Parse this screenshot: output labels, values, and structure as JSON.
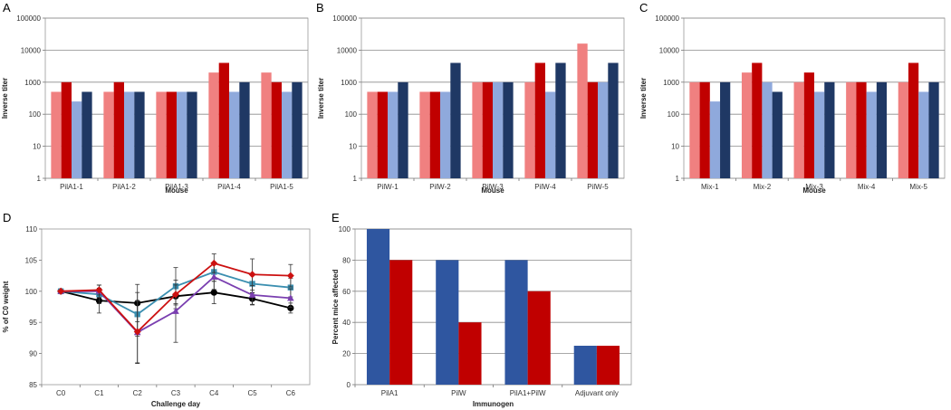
{
  "colors": {
    "light_red": "#f08080",
    "dark_red": "#c00000",
    "light_blue": "#8fa9dc",
    "dark_navy": "#1f3864",
    "bar_blue": "#2f56a0",
    "bar_red": "#c00000",
    "line_red": "#cc1010",
    "line_teal": "#3b8fb0",
    "line_purple": "#7a3fb0",
    "line_black": "#000000"
  },
  "chart_data": [
    {
      "panel": "A",
      "type": "bar",
      "scale": "log",
      "ylim": [
        1,
        100000
      ],
      "yticks": [
        "1",
        "10",
        "100",
        "1000",
        "10000",
        "100000"
      ],
      "ylabel": "Inverse titer",
      "xlabel": "Mouse",
      "categories": [
        "PilA1-1",
        "PilA1-2",
        "PilA1-3",
        "PilA1-4",
        "PilA1-5"
      ],
      "series": [
        {
          "name": "s1",
          "color": "#f08080",
          "values": [
            500,
            500,
            500,
            2000,
            2000
          ]
        },
        {
          "name": "s2",
          "color": "#c00000",
          "values": [
            1000,
            1000,
            500,
            4000,
            1000
          ]
        },
        {
          "name": "s3",
          "color": "#8fa9dc",
          "values": [
            250,
            500,
            500,
            500,
            500
          ]
        },
        {
          "name": "s4",
          "color": "#1f3864",
          "values": [
            500,
            500,
            500,
            1000,
            1000
          ]
        }
      ]
    },
    {
      "panel": "B",
      "type": "bar",
      "scale": "log",
      "ylim": [
        1,
        100000
      ],
      "yticks": [
        "1",
        "10",
        "100",
        "1000",
        "10000",
        "100000"
      ],
      "ylabel": "Inverse titer",
      "xlabel": "Mouse",
      "categories": [
        "PilW-1",
        "PilW-2",
        "PilW-3",
        "PilW-4",
        "PilW-5"
      ],
      "series": [
        {
          "name": "s1",
          "color": "#f08080",
          "values": [
            500,
            500,
            1000,
            1000,
            16000
          ]
        },
        {
          "name": "s2",
          "color": "#c00000",
          "values": [
            500,
            500,
            1000,
            4000,
            1000
          ]
        },
        {
          "name": "s3",
          "color": "#8fa9dc",
          "values": [
            500,
            500,
            1000,
            500,
            1000
          ]
        },
        {
          "name": "s4",
          "color": "#1f3864",
          "values": [
            1000,
            4000,
            1000,
            4000,
            4000
          ]
        }
      ]
    },
    {
      "panel": "C",
      "type": "bar",
      "scale": "log",
      "ylim": [
        1,
        100000
      ],
      "yticks": [
        "1",
        "10",
        "100",
        "1000",
        "10000",
        "100000"
      ],
      "ylabel": "Inverse titer",
      "xlabel": "Mouse",
      "categories": [
        "Mix-1",
        "Mix-2",
        "Mix-3",
        "Mix-4",
        "Mix-5"
      ],
      "series": [
        {
          "name": "s1",
          "color": "#f08080",
          "values": [
            1000,
            2000,
            1000,
            1000,
            1000
          ]
        },
        {
          "name": "s2",
          "color": "#c00000",
          "values": [
            1000,
            4000,
            2000,
            1000,
            4000
          ]
        },
        {
          "name": "s3",
          "color": "#8fa9dc",
          "values": [
            250,
            1000,
            500,
            500,
            500
          ]
        },
        {
          "name": "s4",
          "color": "#1f3864",
          "values": [
            1000,
            500,
            1000,
            1000,
            1000
          ]
        }
      ]
    },
    {
      "panel": "D",
      "type": "line",
      "ylim": [
        85,
        110
      ],
      "yticks": [
        "85",
        "90",
        "95",
        "100",
        "105",
        "110"
      ],
      "ylabel": "% of C0 weight",
      "xlabel": "Challenge day",
      "categories": [
        "C0",
        "C1",
        "C2",
        "C3",
        "C4",
        "C5",
        "C6"
      ],
      "series": [
        {
          "name": "red",
          "color": "#cc1010",
          "marker": "diamond",
          "values": [
            100,
            100.2,
            93.5,
            99.5,
            104.5,
            102.7,
            102.5
          ],
          "errors": [
            0,
            0.8,
            5.0,
            1.5,
            1.5,
            2.5,
            1.8
          ]
        },
        {
          "name": "teal",
          "color": "#3b8fb0",
          "marker": "square",
          "values": [
            100,
            99.5,
            96.3,
            100.8,
            103.1,
            101.2,
            100.6
          ],
          "errors": [
            0,
            1.5,
            3.5,
            3.0,
            1.5,
            1.5,
            1.5
          ]
        },
        {
          "name": "purple",
          "color": "#7a3fb0",
          "marker": "triangle",
          "values": [
            100,
            100,
            93.4,
            96.8,
            102.3,
            99.4,
            98.9
          ],
          "errors": [
            0,
            1.0,
            5.0,
            5.0,
            2.0,
            1.5,
            1.5
          ]
        },
        {
          "name": "black",
          "color": "#000000",
          "marker": "circle",
          "values": [
            100,
            98.5,
            98.1,
            99.2,
            99.8,
            98.8,
            97.3
          ],
          "errors": [
            0,
            2.0,
            3.0,
            2.0,
            1.8,
            1.0,
            0.8
          ]
        }
      ]
    },
    {
      "panel": "E",
      "type": "bar",
      "ylim": [
        0,
        100
      ],
      "yticks": [
        "0",
        "20",
        "40",
        "60",
        "80",
        "100"
      ],
      "ylabel": "Percent mice affected",
      "xlabel": "Immunogen",
      "categories": [
        "PilA1",
        "PilW",
        "PilA1+PilW",
        "Adjuvant only"
      ],
      "series": [
        {
          "name": "s1",
          "color": "#2f56a0",
          "values": [
            100,
            80,
            80,
            25
          ]
        },
        {
          "name": "s2",
          "color": "#c00000",
          "values": [
            80,
            40,
            60,
            25
          ]
        }
      ]
    }
  ]
}
